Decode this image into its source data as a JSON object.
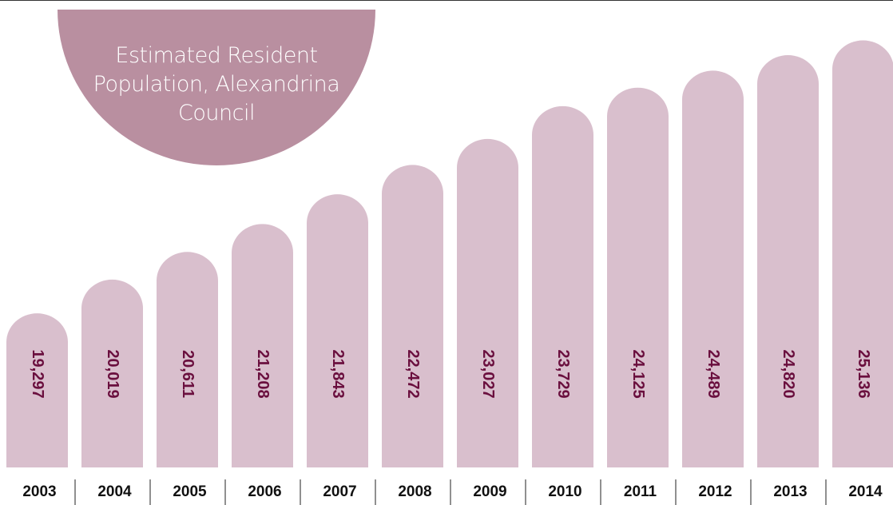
{
  "chart_data": {
    "type": "bar",
    "title": "Estimated Resident Population, Alexandrina Council",
    "categories": [
      "2003",
      "2004",
      "2005",
      "2006",
      "2007",
      "2008",
      "2009",
      "2010",
      "2011",
      "2012",
      "2013",
      "2014"
    ],
    "values": [
      19297,
      20019,
      20611,
      21208,
      21843,
      22472,
      23027,
      23729,
      24125,
      24489,
      24820,
      25136
    ],
    "value_labels": [
      "19,297",
      "20,019",
      "20,611",
      "21,208",
      "21,843",
      "22,472",
      "23,027",
      "23,729",
      "24,125",
      "24,489",
      "24,820",
      "25,136"
    ],
    "color": "#d9bfcd",
    "ylim": [
      16000,
      26000
    ],
    "grid": false
  }
}
